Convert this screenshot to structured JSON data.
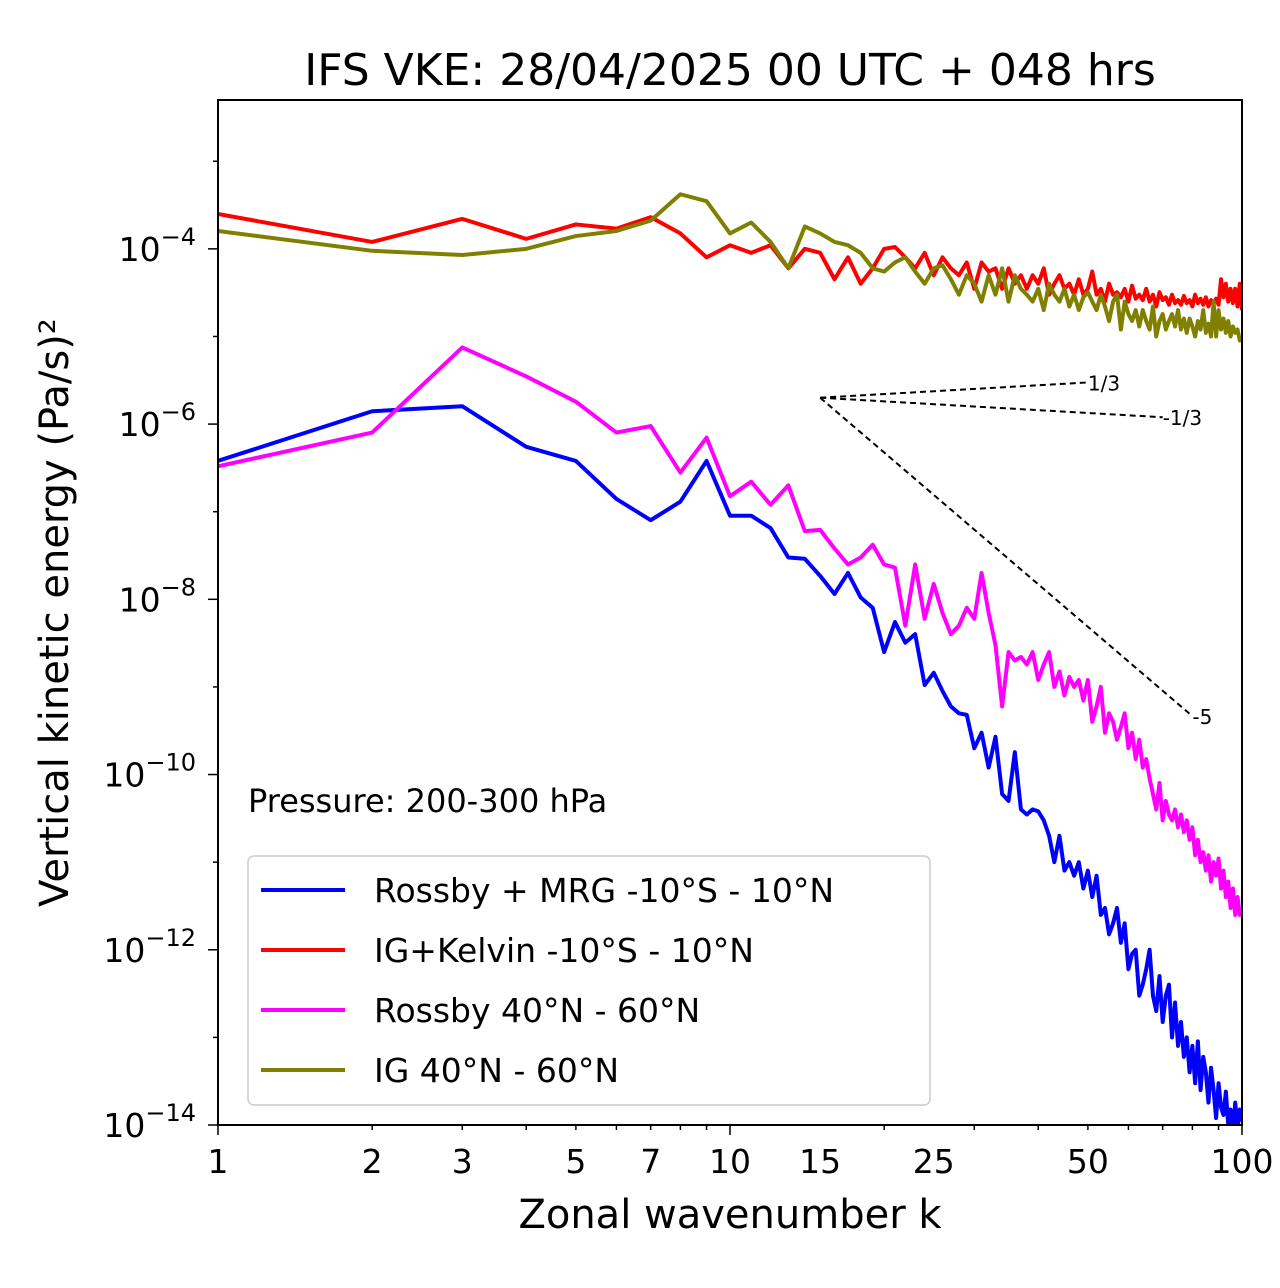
{
  "chart_data": {
    "type": "line",
    "title": "IFS VKE: 28/04/2025 00 UTC + 048 hrs",
    "xlabel": "Zonal wavenumber k",
    "ylabel": "Vertical kinetic energy (Pa/s)²",
    "xscale": "log",
    "yscale": "log",
    "xlim": [
      1,
      100
    ],
    "ylim": [
      1e-14,
      0.005
    ],
    "grid": false,
    "legend_position": "lower-left",
    "annotation": "Pressure: 200-300 hPa",
    "x_ticks": [
      1,
      2,
      3,
      5,
      7,
      10,
      15,
      25,
      50,
      100
    ],
    "y_ticks": [
      -14,
      -12,
      -10,
      -8,
      -6,
      -4
    ],
    "reference_slopes": [
      {
        "label": "1/3",
        "slope": 0.3333,
        "k_start": 15,
        "k_end": 50,
        "y_start": 2e-06
      },
      {
        "label": "-1/3",
        "slope": -0.3333,
        "k_start": 15,
        "k_end": 70,
        "y_start": 2e-06
      },
      {
        "label": "-5",
        "slope": -5,
        "k_start": 15,
        "k_end": 80,
        "y_start": 2e-06
      }
    ],
    "series": [
      {
        "name": "Rossby + MRG -10°S - 10°N",
        "color": "#0000ff",
        "x": [
          1,
          2,
          3,
          4,
          5,
          6,
          7,
          8,
          9,
          10,
          11,
          12,
          13,
          14,
          15,
          16,
          17,
          18,
          19,
          20,
          21,
          22,
          23,
          24,
          25,
          26,
          27,
          28,
          29,
          30,
          31,
          32,
          33,
          34,
          35,
          36,
          37,
          38,
          39,
          40,
          41,
          42,
          43,
          44,
          45,
          46,
          47,
          48,
          49,
          50,
          51,
          52,
          53,
          54,
          55,
          56,
          57,
          58,
          59,
          60,
          61,
          62,
          63,
          64,
          65,
          66,
          67,
          68,
          69,
          70,
          71,
          72,
          73,
          74,
          75,
          76,
          77,
          78,
          79,
          80,
          81,
          82,
          83,
          84,
          85,
          86,
          87,
          88,
          89,
          90,
          91,
          92,
          93,
          94,
          95,
          96,
          97,
          98,
          99,
          100
        ],
        "y": [
          3.8e-07,
          1.4e-06,
          1.6e-06,
          5.5e-07,
          3.8e-07,
          1.4e-07,
          8e-08,
          1.3e-07,
          3.8e-07,
          9e-08,
          9e-08,
          6.5e-08,
          3e-08,
          2.9e-08,
          1.85e-08,
          1.15e-08,
          2e-08,
          1.05e-08,
          8e-09,
          2.5e-09,
          5.5e-09,
          3.2e-09,
          4e-09,
          1.05e-09,
          1.45e-09,
          9e-10,
          6e-10,
          5e-10,
          4.8e-10,
          2e-10,
          3e-10,
          1.2e-10,
          2.7e-10,
          6e-11,
          5e-11,
          1.8e-10,
          4e-11,
          3.5e-11,
          4e-11,
          3.8e-11,
          3e-11,
          2e-11,
          1e-11,
          2e-11,
          8e-12,
          1e-11,
          7e-12,
          1e-11,
          5e-12,
          8e-12,
          4e-12,
          7e-12,
          2.5e-12,
          3e-12,
          1.5e-12,
          2e-12,
          3e-12,
          1.2e-12,
          2e-12,
          6e-13,
          9e-13,
          1e-12,
          3e-13,
          4e-13,
          6e-13,
          1e-12,
          3e-13,
          2e-13,
          5e-13,
          1.5e-13,
          3e-13,
          4e-13,
          1e-13,
          2.5e-13,
          8e-14,
          1.5e-13,
          6e-14,
          1e-13,
          4e-14,
          8e-14,
          3e-14,
          9e-14,
          2.5e-14,
          6e-14,
          4e-14,
          1.8e-14,
          4.5e-14,
          2.5e-14,
          1.2e-14,
          3e-14,
          1.6e-14,
          1.3e-14,
          2.4e-14,
          1e-14,
          1.5e-14,
          8e-15,
          1.8e-14,
          9e-15,
          1.5e-14,
          1.1e-14
        ],
        "label_bind": "legend.0"
      },
      {
        "name": "IG+Kelvin -10°S - 10°N",
        "color": "#ff0000",
        "x": [
          1,
          2,
          3,
          4,
          5,
          6,
          7,
          8,
          9,
          10,
          11,
          12,
          13,
          14,
          15,
          16,
          17,
          18,
          19,
          20,
          21,
          22,
          23,
          24,
          25,
          26,
          27,
          28,
          29,
          30,
          31,
          32,
          33,
          34,
          35,
          36,
          37,
          38,
          39,
          40,
          41,
          42,
          43,
          44,
          45,
          46,
          47,
          48,
          49,
          50,
          51,
          52,
          53,
          54,
          55,
          56,
          57,
          58,
          59,
          60,
          61,
          62,
          63,
          64,
          65,
          66,
          67,
          68,
          69,
          70,
          71,
          72,
          73,
          74,
          75,
          76,
          77,
          78,
          79,
          80,
          81,
          82,
          83,
          84,
          85,
          86,
          87,
          88,
          89,
          90,
          91,
          92,
          93,
          94,
          95,
          96,
          97,
          98,
          99,
          100
        ],
        "y": [
          0.00025,
          0.00012,
          0.00022,
          0.00013,
          0.00019,
          0.00017,
          0.00023,
          0.00015,
          8e-05,
          0.00011,
          9e-05,
          0.00011,
          6e-05,
          0.0001,
          9e-05,
          4.5e-05,
          8e-05,
          4e-05,
          6e-05,
          0.0001,
          0.000105,
          8e-05,
          6e-05,
          9e-05,
          5e-05,
          8e-05,
          6e-05,
          5e-05,
          7e-05,
          3.5e-05,
          7e-05,
          5.5e-05,
          6e-05,
          3.5e-05,
          6e-05,
          4e-05,
          5e-05,
          3.5e-05,
          5e-05,
          4e-05,
          6e-05,
          3e-05,
          4e-05,
          5e-05,
          3.5e-05,
          4e-05,
          3e-05,
          4.5e-05,
          3e-05,
          3.5e-05,
          5.5e-05,
          3e-05,
          3.5e-05,
          2.5e-05,
          4e-05,
          3e-05,
          3.2e-05,
          2.8e-05,
          3.5e-05,
          2.5e-05,
          3.8e-05,
          2.7e-05,
          3e-05,
          2.6e-05,
          3.5e-05,
          2.5e-05,
          3e-05,
          2.2e-05,
          3.2e-05,
          2.6e-05,
          2.8e-05,
          2.3e-05,
          3e-05,
          2.4e-05,
          2.6e-05,
          2.3e-05,
          2.9e-05,
          2.4e-05,
          2.6e-05,
          2.2e-05,
          3e-05,
          2.4e-05,
          2.7e-05,
          2.3e-05,
          2.8e-05,
          2.2e-05,
          2.6e-05,
          2.4e-05,
          2.7e-05,
          2.3e-05,
          4.5e-05,
          2.8e-05,
          4e-05,
          2.5e-05,
          3.5e-05,
          2.4e-05,
          3.5e-05,
          2.2e-05,
          4e-05,
          2e-05
        ],
        "label_bind": "legend.1"
      },
      {
        "name": "Rossby 40°N - 60°N",
        "color": "#ff00ff",
        "x": [
          1,
          2,
          3,
          4,
          5,
          6,
          7,
          8,
          9,
          10,
          11,
          12,
          13,
          14,
          15,
          16,
          17,
          18,
          19,
          20,
          21,
          22,
          23,
          24,
          25,
          26,
          27,
          28,
          29,
          30,
          31,
          32,
          33,
          34,
          35,
          36,
          37,
          38,
          39,
          40,
          41,
          42,
          43,
          44,
          45,
          46,
          47,
          48,
          49,
          50,
          51,
          52,
          53,
          54,
          55,
          56,
          57,
          58,
          59,
          60,
          61,
          62,
          63,
          64,
          65,
          66,
          67,
          68,
          69,
          70,
          71,
          72,
          73,
          74,
          75,
          76,
          77,
          78,
          79,
          80,
          81,
          82,
          83,
          84,
          85,
          86,
          87,
          88,
          89,
          90,
          91,
          92,
          93,
          94,
          95,
          96,
          97,
          98,
          99,
          100
        ],
        "y": [
          3.3e-07,
          8e-07,
          7.5e-06,
          3.5e-06,
          1.8e-06,
          8e-07,
          9.5e-07,
          2.8e-07,
          7e-07,
          1.5e-07,
          2.2e-07,
          1.2e-07,
          2e-07,
          6e-08,
          6.2e-08,
          3.8e-08,
          2.5e-08,
          3e-08,
          4.2e-08,
          2.5e-08,
          2.3e-08,
          5e-09,
          2.5e-08,
          6e-09,
          1.5e-08,
          7e-09,
          4e-09,
          5e-09,
          8e-09,
          6e-09,
          2e-08,
          7e-09,
          3e-09,
          6e-10,
          2.5e-09,
          2e-09,
          2.2e-09,
          1.8e-09,
          2.5e-09,
          1.2e-09,
          1.8e-09,
          2.5e-09,
          1e-09,
          1.5e-09,
          8e-10,
          1.3e-09,
          1e-09,
          1.2e-09,
          7e-10,
          1.2e-09,
          4e-10,
          6e-10,
          1e-09,
          3e-10,
          5e-10,
          4e-10,
          2.5e-10,
          3.5e-10,
          5e-10,
          2e-10,
          3e-10,
          1.5e-10,
          2.5e-10,
          1.2e-10,
          1.5e-10,
          9e-11,
          6e-11,
          4e-11,
          8e-11,
          3e-11,
          5e-11,
          3.5e-11,
          3e-11,
          4e-11,
          2.5e-11,
          3.5e-11,
          2.2e-11,
          3e-11,
          1.8e-11,
          2.5e-11,
          1.2e-11,
          1.8e-11,
          1e-11,
          1.3e-11,
          8e-12,
          1.2e-11,
          6e-12,
          1e-11,
          7e-12,
          1.1e-11,
          5e-12,
          8e-12,
          4e-12,
          6e-12,
          3e-12,
          5e-12,
          2.5e-12,
          4e-12,
          2.5e-12,
          3e-12
        ],
        "label_bind": "legend.2"
      },
      {
        "name": "IG 40°N - 60°N",
        "color": "#808000",
        "x": [
          1,
          2,
          3,
          4,
          5,
          6,
          7,
          8,
          9,
          10,
          11,
          12,
          13,
          14,
          15,
          16,
          17,
          18,
          19,
          20,
          21,
          22,
          23,
          24,
          25,
          26,
          27,
          28,
          29,
          30,
          31,
          32,
          33,
          34,
          35,
          36,
          37,
          38,
          39,
          40,
          41,
          42,
          43,
          44,
          45,
          46,
          47,
          48,
          49,
          50,
          51,
          52,
          53,
          54,
          55,
          56,
          57,
          58,
          59,
          60,
          61,
          62,
          63,
          64,
          65,
          66,
          67,
          68,
          69,
          70,
          71,
          72,
          73,
          74,
          75,
          76,
          77,
          78,
          79,
          80,
          81,
          82,
          83,
          84,
          85,
          86,
          87,
          88,
          89,
          90,
          91,
          92,
          93,
          94,
          95,
          96,
          97,
          98,
          99,
          100
        ],
        "y": [
          0.00016,
          9.5e-05,
          8.5e-05,
          0.0001,
          0.00014,
          0.00016,
          0.00021,
          0.00042,
          0.00035,
          0.00015,
          0.0002,
          0.00012,
          6e-05,
          0.00018,
          0.00015,
          0.00012,
          0.00011,
          9e-05,
          6e-05,
          5.5e-05,
          7e-05,
          8e-05,
          5.5e-05,
          4e-05,
          6e-05,
          6.5e-05,
          4.5e-05,
          3e-05,
          5e-05,
          4e-05,
          2.5e-05,
          5e-05,
          3e-05,
          6e-05,
          2.5e-05,
          5e-05,
          3.5e-05,
          3e-05,
          2.5e-05,
          3.5e-05,
          2e-05,
          4e-05,
          3e-05,
          2.5e-05,
          3.5e-05,
          2.2e-05,
          3e-05,
          2e-05,
          2.8e-05,
          3.2e-05,
          2.5e-05,
          2e-05,
          3e-05,
          2.2e-05,
          1.5e-05,
          2.5e-05,
          3e-05,
          1.2e-05,
          2.5e-05,
          1.8e-05,
          1.5e-05,
          2e-05,
          1.3e-05,
          2e-05,
          1.5e-05,
          1.2e-05,
          2.2e-05,
          1e-05,
          1.5e-05,
          1.8e-05,
          1.2e-05,
          1.5e-05,
          1.8e-05,
          1.3e-05,
          2e-05,
          1.2e-05,
          1.6e-05,
          1.1e-05,
          1.6e-05,
          1.3e-05,
          1e-05,
          1.5e-05,
          1.2e-05,
          2e-05,
          1.1e-05,
          1.4e-05,
          1e-05,
          2.5e-05,
          1e-05,
          2e-05,
          1.2e-05,
          1.6e-05,
          1.1e-05,
          1.5e-05,
          1e-05,
          1.3e-05,
          1.1e-05,
          1.2e-05,
          9e-06,
          1e-05
        ],
        "label_bind": "legend.3"
      }
    ]
  },
  "legend": [
    "Rossby + MRG -10°S - 10°N",
    "IG+Kelvin -10°S - 10°N",
    "Rossby 40°N - 60°N",
    "IG 40°N - 60°N"
  ]
}
